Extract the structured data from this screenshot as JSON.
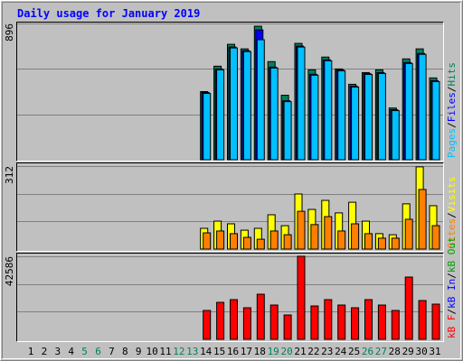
{
  "title": "Daily usage for January 2019",
  "separator": "/",
  "chart_data": [
    {
      "type": "bar",
      "ylim": [
        0,
        896
      ],
      "yticks": [
        896
      ],
      "series": [
        {
          "name": "Hits",
          "color": "#00805c",
          "values": [
            0,
            0,
            0,
            0,
            0,
            0,
            0,
            0,
            0,
            0,
            0,
            0,
            0,
            448,
            615,
            759,
            729,
            878,
            645,
            424,
            765,
            591,
            675,
            597,
            496,
            573,
            591,
            340,
            663,
            729,
            538
          ]
        },
        {
          "name": "Files",
          "color": "#0000ff",
          "values": [
            0,
            0,
            0,
            0,
            0,
            0,
            0,
            0,
            0,
            0,
            0,
            0,
            0,
            442,
            597,
            741,
            717,
            854,
            609,
            388,
            747,
            562,
            657,
            591,
            484,
            567,
            573,
            329,
            639,
            699,
            520
          ]
        },
        {
          "name": "Pages",
          "color": "#00c0ff",
          "values": [
            0,
            0,
            0,
            0,
            0,
            0,
            0,
            0,
            0,
            0,
            0,
            0,
            0,
            436,
            591,
            735,
            711,
            789,
            603,
            382,
            741,
            556,
            651,
            585,
            478,
            561,
            567,
            323,
            633,
            693,
            514
          ]
        }
      ]
    },
    {
      "type": "bar",
      "ylim": [
        0,
        312
      ],
      "yticks": [
        312
      ],
      "series": [
        {
          "name": "Visits",
          "color": "#ffff00",
          "values": [
            0,
            0,
            0,
            0,
            0,
            0,
            0,
            0,
            0,
            0,
            0,
            0,
            0,
            78,
            105,
            95,
            71,
            78,
            129,
            88,
            207,
            149,
            183,
            136,
            176,
            105,
            58,
            54,
            170,
            309,
            163
          ]
        },
        {
          "name": "Sites",
          "color": "#ff8000",
          "values": [
            0,
            0,
            0,
            0,
            0,
            0,
            0,
            0,
            0,
            0,
            0,
            0,
            0,
            61,
            68,
            58,
            44,
            37,
            68,
            54,
            142,
            92,
            122,
            68,
            95,
            58,
            41,
            41,
            112,
            224,
            88
          ]
        }
      ]
    },
    {
      "type": "bar",
      "ylim": [
        0,
        42586
      ],
      "yticks": [
        42586
      ],
      "categories": [
        "1",
        "2",
        "3",
        "4",
        "5",
        "6",
        "7",
        "8",
        "9",
        "10",
        "11",
        "12",
        "13",
        "14",
        "15",
        "16",
        "17",
        "18",
        "19",
        "20",
        "21",
        "22",
        "23",
        "24",
        "25",
        "26",
        "27",
        "28",
        "29",
        "30",
        "31"
      ],
      "category_colors": [
        "#000000",
        "#000000",
        "#000000",
        "#000000",
        "#00805c",
        "#00805c",
        "#000000",
        "#000000",
        "#000000",
        "#000000",
        "#000000",
        "#00805c",
        "#00805c",
        "#000000",
        "#000000",
        "#000000",
        "#000000",
        "#000000",
        "#00805c",
        "#00805c",
        "#000000",
        "#000000",
        "#000000",
        "#000000",
        "#000000",
        "#00805c",
        "#00805c",
        "#000000",
        "#000000",
        "#000000",
        "#000000"
      ],
      "series": [
        {
          "name": "kB Out",
          "color": "#00a000",
          "values": [
            0,
            0,
            0,
            0,
            0,
            0,
            0,
            0,
            0,
            0,
            0,
            0,
            0,
            0,
            0,
            0,
            0,
            0,
            0,
            0,
            0,
            0,
            0,
            0,
            0,
            0,
            0,
            0,
            0,
            0,
            0
          ]
        },
        {
          "name": "kB In",
          "color": "#0000ff",
          "values": [
            0,
            0,
            0,
            0,
            0,
            0,
            0,
            0,
            0,
            0,
            0,
            0,
            0,
            0,
            0,
            0,
            0,
            0,
            0,
            0,
            0,
            0,
            0,
            0,
            0,
            0,
            0,
            0,
            0,
            0,
            0
          ]
        },
        {
          "name": "kB F",
          "color": "#ff0000",
          "values": [
            0,
            0,
            0,
            0,
            0,
            0,
            0,
            0,
            0,
            0,
            0,
            0,
            0,
            14813,
            18979,
            20367,
            16201,
            23145,
            17590,
            12498,
            42586,
            17127,
            20367,
            17590,
            16201,
            20367,
            17590,
            14813,
            31940,
            19905,
            18053
          ]
        }
      ]
    }
  ]
}
